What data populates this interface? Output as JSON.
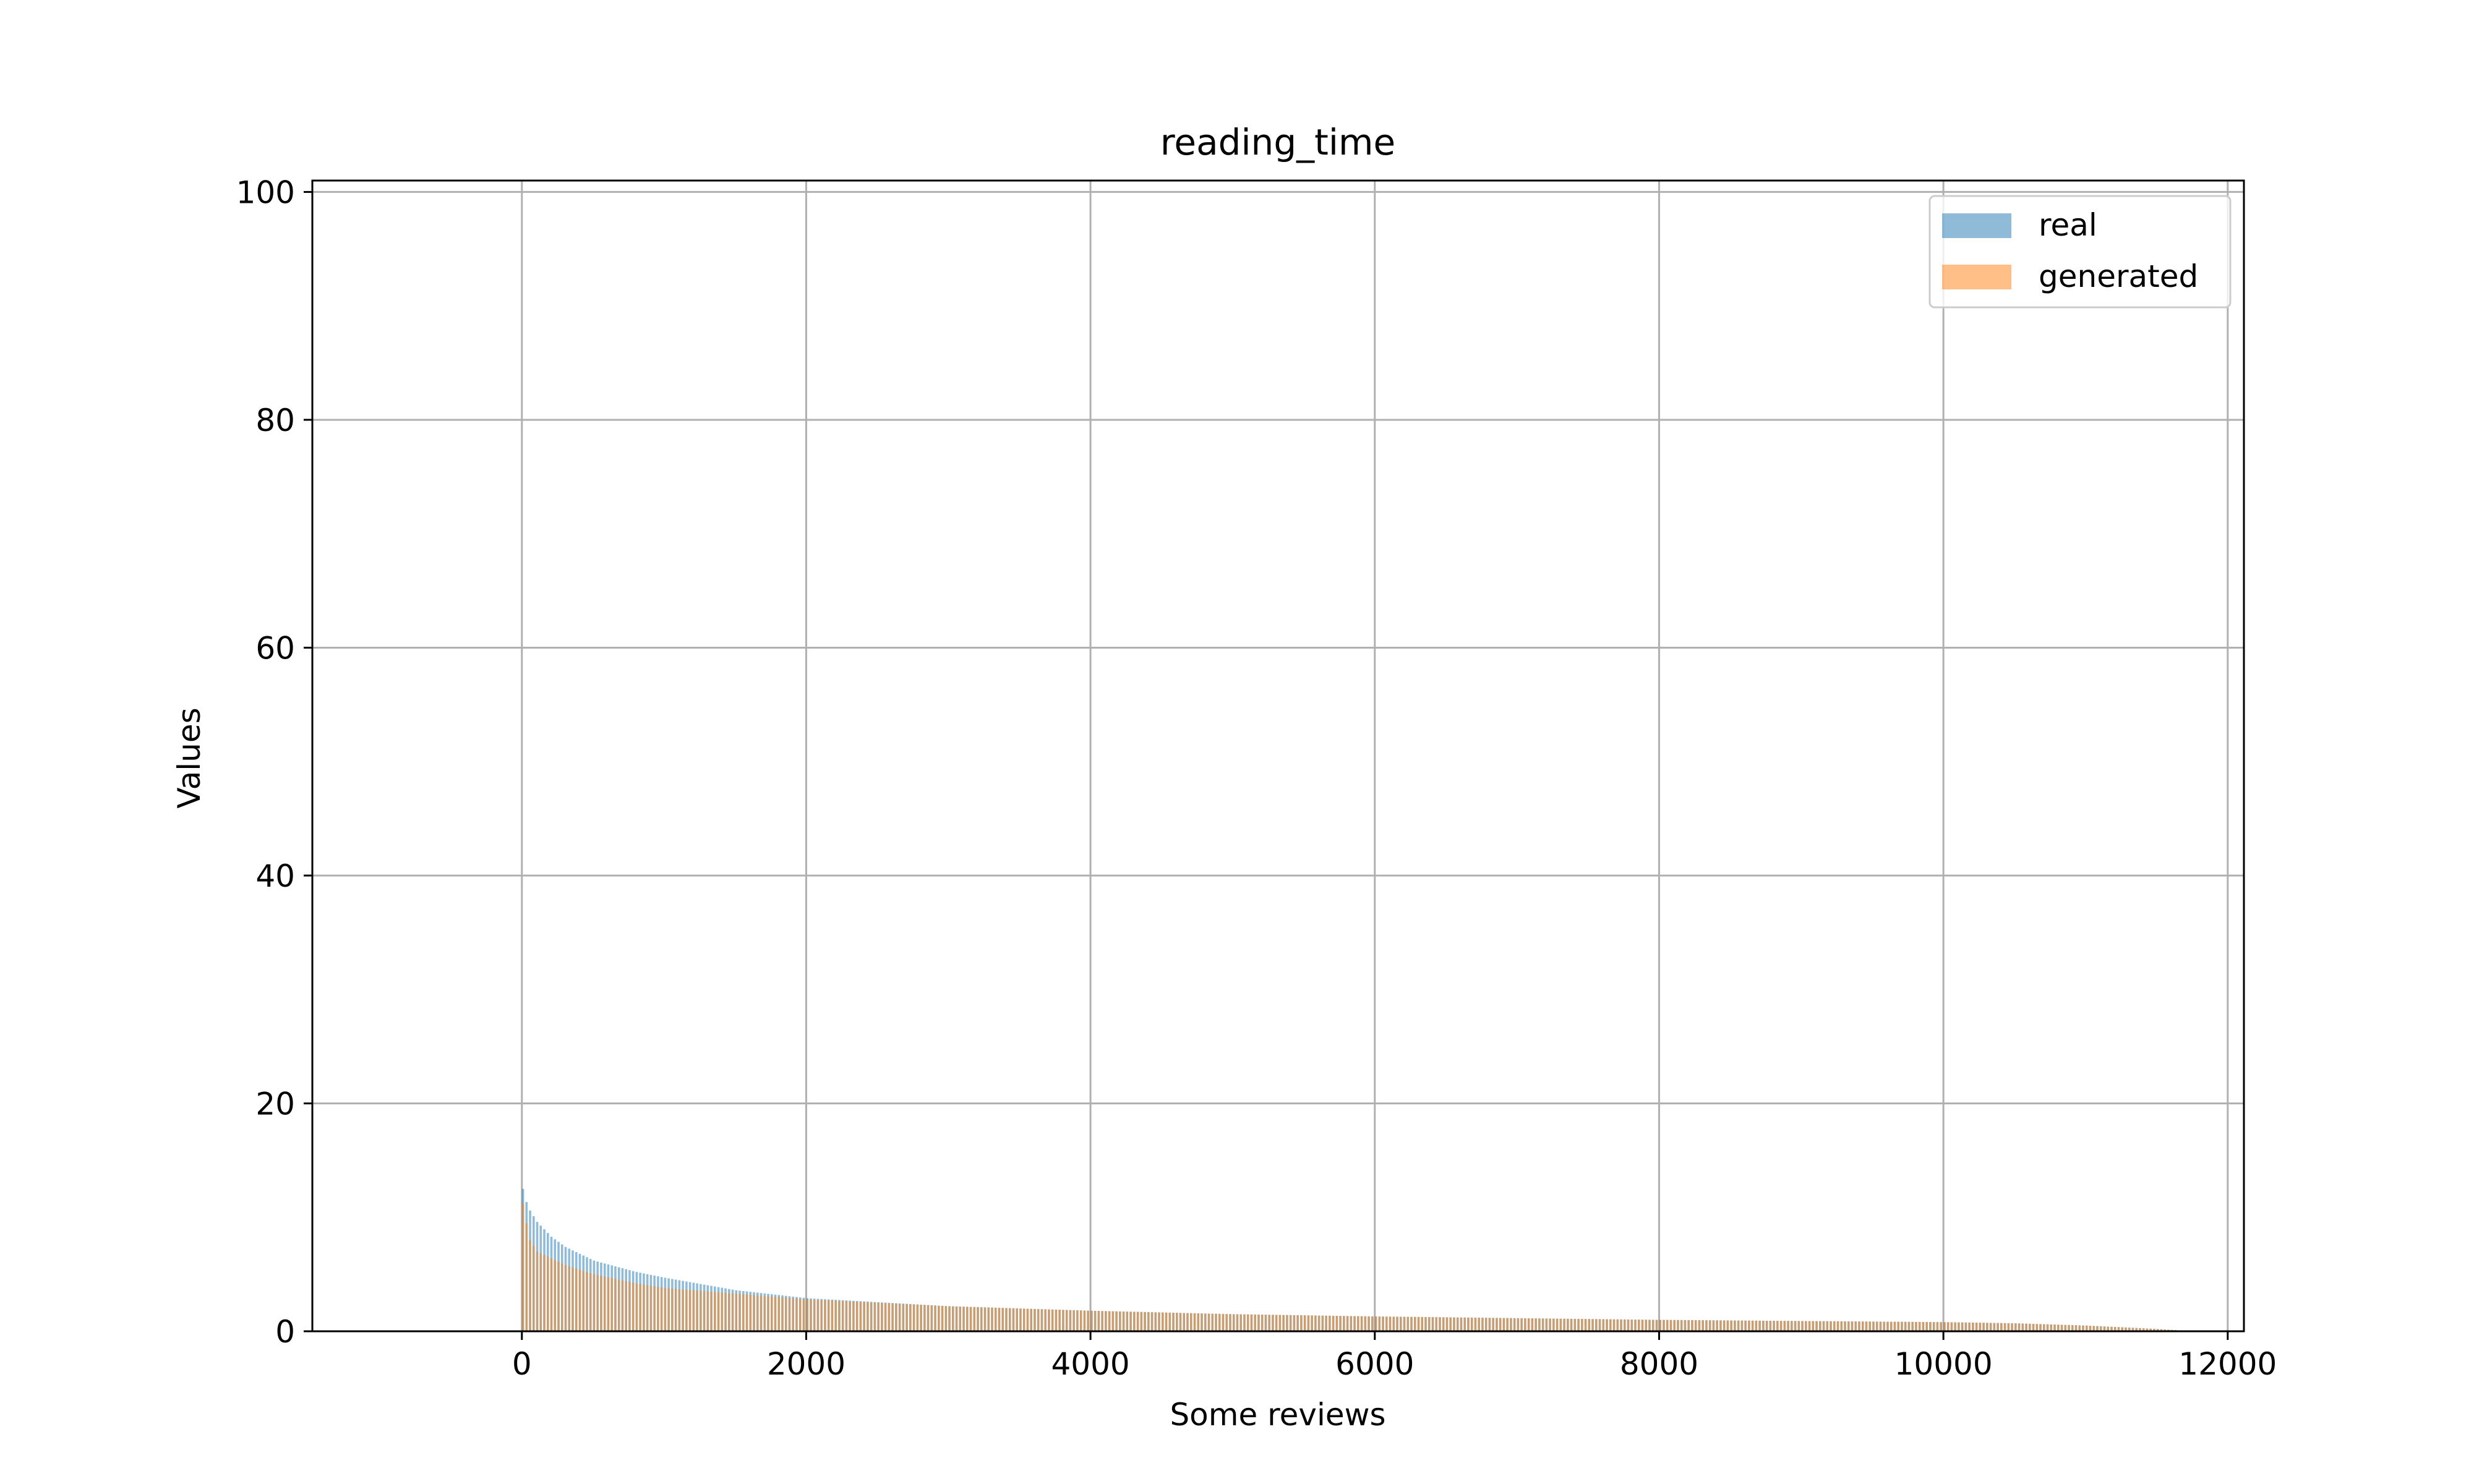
{
  "chart_data": {
    "type": "bar",
    "title": "reading_time",
    "xlabel": "Some reviews",
    "ylabel": "Values",
    "xlim": [
      -1474,
      12114
    ],
    "ylim": [
      0,
      101
    ],
    "xticks": [
      0,
      2000,
      4000,
      6000,
      8000,
      10000,
      12000
    ],
    "yticks": [
      0,
      20,
      40,
      60,
      80,
      100
    ],
    "grid": true,
    "legend_position": "top-right",
    "series": [
      {
        "name": "real",
        "color": "#1f77b4",
        "alpha": 0.5,
        "profile": {
          "x": [
            0,
            10,
            50,
            100,
            200,
            300,
            500,
            800,
            1000,
            1500,
            2000,
            3000,
            4000,
            5000,
            6000,
            7000,
            8000,
            9000,
            10000,
            10500,
            11000,
            11500,
            11750
          ],
          "y": [
            12.5,
            11.8,
            10.6,
            9.6,
            8.3,
            7.4,
            6.2,
            5.2,
            4.7,
            3.6,
            2.9,
            2.2,
            1.8,
            1.5,
            1.3,
            1.15,
            1.0,
            0.9,
            0.8,
            0.7,
            0.5,
            0.2,
            0.0
          ]
        }
      },
      {
        "name": "generated",
        "color": "#ff7f0e",
        "alpha": 0.5,
        "profile": {
          "x": [
            0,
            10,
            50,
            100,
            200,
            300,
            500,
            800,
            1000,
            1500,
            2000,
            3000,
            4000,
            5000,
            6000,
            7000,
            8000,
            9000,
            10000,
            10500,
            11000,
            11500,
            11750
          ],
          "y": [
            11.2,
            10.4,
            8.0,
            7.0,
            6.4,
            5.8,
            5.0,
            4.2,
            3.8,
            3.3,
            2.8,
            2.2,
            1.8,
            1.5,
            1.3,
            1.15,
            1.0,
            0.9,
            0.8,
            0.7,
            0.5,
            0.2,
            0.0
          ]
        }
      }
    ]
  }
}
